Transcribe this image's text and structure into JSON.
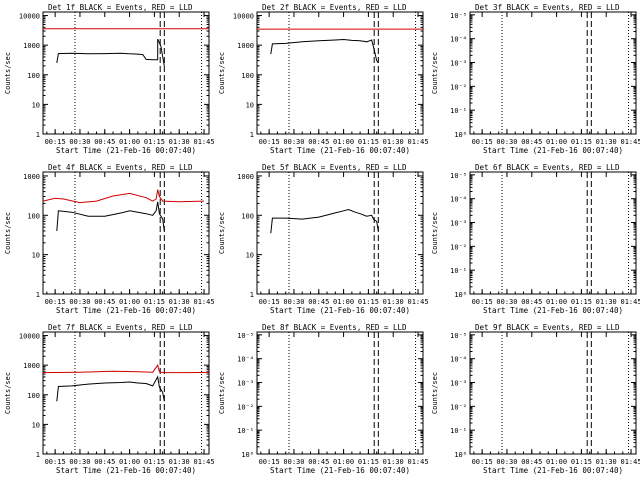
{
  "colors": {
    "events": "#000000",
    "lld": "#d00000",
    "axis": "#000000"
  },
  "chart_data": [
    {
      "type": "line",
      "title": "Det 1f BLACK = Events, RED = LLD",
      "ylabel": "Counts/sec",
      "xlabel": "Start Time (21-Feb-16 00:07:40)",
      "yscale": "log",
      "y_ticks": [
        "1",
        "10",
        "100",
        "1000",
        "10000"
      ],
      "x_ticks": [
        "00:15",
        "00:30",
        "00:45",
        "01:00",
        "01:15",
        "01:30",
        "01:45"
      ],
      "series": [
        {
          "color": "red",
          "x": [
            "00:07",
            "01:48"
          ],
          "y": [
            3600,
            3600
          ]
        },
        {
          "color": "black",
          "x": [
            "00:16",
            "00:17",
            "00:25",
            "00:35",
            "00:45",
            "00:55",
            "01:00",
            "01:05",
            "01:08",
            "01:10",
            "01:14",
            "01:17",
            "01:17",
            "01:19",
            "01:20",
            "01:21"
          ],
          "y": [
            250,
            520,
            530,
            510,
            520,
            530,
            510,
            500,
            480,
            330,
            320,
            320,
            1600,
            900,
            400,
            200
          ]
        }
      ]
    },
    {
      "type": "line",
      "title": "Det 2f BLACK = Events, RED = LLD",
      "ylabel": "Counts/sec",
      "xlabel": "Start Time (21-Feb-16 00:07:40)",
      "yscale": "log",
      "y_ticks": [
        "1",
        "10",
        "100",
        "1000",
        "10000"
      ],
      "x_ticks": [
        "00:15",
        "00:30",
        "00:45",
        "01:00",
        "01:15",
        "01:30",
        "01:45"
      ],
      "series": [
        {
          "color": "red",
          "x": [
            "00:07",
            "01:48"
          ],
          "y": [
            3500,
            3500
          ]
        },
        {
          "color": "black",
          "x": [
            "00:16",
            "00:17",
            "00:25",
            "00:35",
            "00:45",
            "00:55",
            "01:00",
            "01:05",
            "01:10",
            "01:14",
            "01:17",
            "01:18",
            "01:20",
            "01:21"
          ],
          "y": [
            500,
            1100,
            1150,
            1300,
            1400,
            1500,
            1550,
            1450,
            1400,
            1300,
            1500,
            900,
            300,
            250
          ]
        }
      ]
    },
    {
      "type": "line",
      "title": "Det 3f BLACK = Events, RED = LLD",
      "ylabel": "Counts/sec",
      "xlabel": "Start Time (21-Feb-16 00:07:40)",
      "yscale": "log",
      "y_ticks": [
        "10⁰",
        "10⁻¹",
        "10⁻²",
        "10⁻³",
        "10⁻⁴",
        "10⁻⁵"
      ],
      "x_ticks": [
        "00:15",
        "00:30",
        "00:45",
        "01:00",
        "01:15",
        "01:30",
        "01:45"
      ],
      "series": []
    },
    {
      "type": "line",
      "title": "Det 4f BLACK = Events, RED = LLD",
      "ylabel": "Counts/sec",
      "xlabel": "Start Time (21-Feb-16 00:07:40)",
      "yscale": "log",
      "y_ticks": [
        "1",
        "10",
        "100",
        "1000"
      ],
      "x_ticks": [
        "00:15",
        "00:30",
        "00:45",
        "01:00",
        "01:15",
        "01:30",
        "01:45"
      ],
      "series": [
        {
          "color": "red",
          "x": [
            "00:07",
            "00:15",
            "00:20",
            "00:30",
            "00:40",
            "00:50",
            "01:00",
            "01:10",
            "01:14",
            "01:16",
            "01:17",
            "01:18",
            "01:20",
            "01:30",
            "01:45"
          ],
          "y": [
            230,
            270,
            260,
            210,
            230,
            310,
            360,
            280,
            230,
            260,
            450,
            300,
            230,
            220,
            230
          ]
        },
        {
          "color": "black",
          "x": [
            "00:16",
            "00:17",
            "00:25",
            "00:35",
            "00:45",
            "00:55",
            "01:00",
            "01:05",
            "01:10",
            "01:14",
            "01:16",
            "01:17",
            "01:18",
            "01:20",
            "01:21"
          ],
          "y": [
            40,
            130,
            120,
            95,
            95,
            115,
            130,
            120,
            110,
            100,
            130,
            220,
            110,
            80,
            40
          ]
        }
      ]
    },
    {
      "type": "line",
      "title": "Det 5f BLACK = Events, RED = LLD",
      "ylabel": "Counts/sec",
      "xlabel": "Start Time (21-Feb-16 00:07:40)",
      "yscale": "log",
      "y_ticks": [
        "1",
        "10",
        "100",
        "1000"
      ],
      "x_ticks": [
        "00:15",
        "00:30",
        "00:45",
        "01:00",
        "01:15",
        "01:30",
        "01:45"
      ],
      "series": [
        {
          "color": "black",
          "x": [
            "00:16",
            "00:17",
            "00:25",
            "00:35",
            "00:45",
            "00:55",
            "01:00",
            "01:03",
            "01:07",
            "01:10",
            "01:14",
            "01:17",
            "01:18",
            "01:20",
            "01:21"
          ],
          "y": [
            35,
            85,
            85,
            80,
            90,
            115,
            130,
            140,
            120,
            110,
            95,
            100,
            80,
            70,
            40
          ]
        }
      ]
    },
    {
      "type": "line",
      "title": "Det 6f BLACK = Events, RED = LLD",
      "ylabel": "Counts/sec",
      "xlabel": "Start Time (21-Feb-16 00:07:40)",
      "yscale": "log",
      "y_ticks": [
        "10⁰",
        "10⁻¹",
        "10⁻²",
        "10⁻³",
        "10⁻⁴",
        "10⁻⁵"
      ],
      "x_ticks": [
        "00:15",
        "00:30",
        "00:45",
        "01:00",
        "01:15",
        "01:30",
        "01:45"
      ],
      "series": []
    },
    {
      "type": "line",
      "title": "Det 7f BLACK = Events, RED = LLD",
      "ylabel": "Counts/sec",
      "xlabel": "Start Time (21-Feb-16 00:07:40)",
      "yscale": "log",
      "y_ticks": [
        "1",
        "10",
        "100",
        "1000",
        "10000"
      ],
      "x_ticks": [
        "00:15",
        "00:30",
        "00:45",
        "01:00",
        "01:15",
        "01:30",
        "01:45"
      ],
      "series": [
        {
          "color": "red",
          "x": [
            "00:07",
            "00:30",
            "00:50",
            "01:05",
            "01:14",
            "01:17",
            "01:18",
            "01:20",
            "01:35",
            "01:48"
          ],
          "y": [
            560,
            580,
            620,
            600,
            580,
            1000,
            600,
            560,
            560,
            570
          ]
        },
        {
          "color": "black",
          "x": [
            "00:16",
            "00:17",
            "00:25",
            "00:35",
            "00:45",
            "00:55",
            "01:00",
            "01:05",
            "01:10",
            "01:14",
            "01:17",
            "01:18",
            "01:20",
            "01:21"
          ],
          "y": [
            60,
            190,
            200,
            230,
            250,
            260,
            270,
            250,
            240,
            200,
            400,
            180,
            120,
            60
          ]
        }
      ]
    },
    {
      "type": "line",
      "title": "Det 8f BLACK = Events, RED = LLD",
      "ylabel": "Counts/sec",
      "xlabel": "Start Time (21-Feb-16 00:07:40)",
      "yscale": "log",
      "y_ticks": [
        "10⁰",
        "10⁻¹",
        "10⁻²",
        "10⁻³",
        "10⁻⁴",
        "10⁻⁵"
      ],
      "x_ticks": [
        "00:15",
        "00:30",
        "00:45",
        "01:00",
        "01:15",
        "01:30",
        "01:45"
      ],
      "series": []
    },
    {
      "type": "line",
      "title": "Det 9f BLACK = Events, RED = LLD",
      "ylabel": "Counts/sec",
      "xlabel": "Start Time (21-Feb-16 00:07:40)",
      "yscale": "log",
      "y_ticks": [
        "10⁰",
        "10⁻¹",
        "10⁻²",
        "10⁻³",
        "10⁻⁴",
        "10⁻⁵"
      ],
      "x_ticks": [
        "00:15",
        "00:30",
        "00:45",
        "01:00",
        "01:15",
        "01:30",
        "01:45"
      ],
      "series": []
    }
  ]
}
